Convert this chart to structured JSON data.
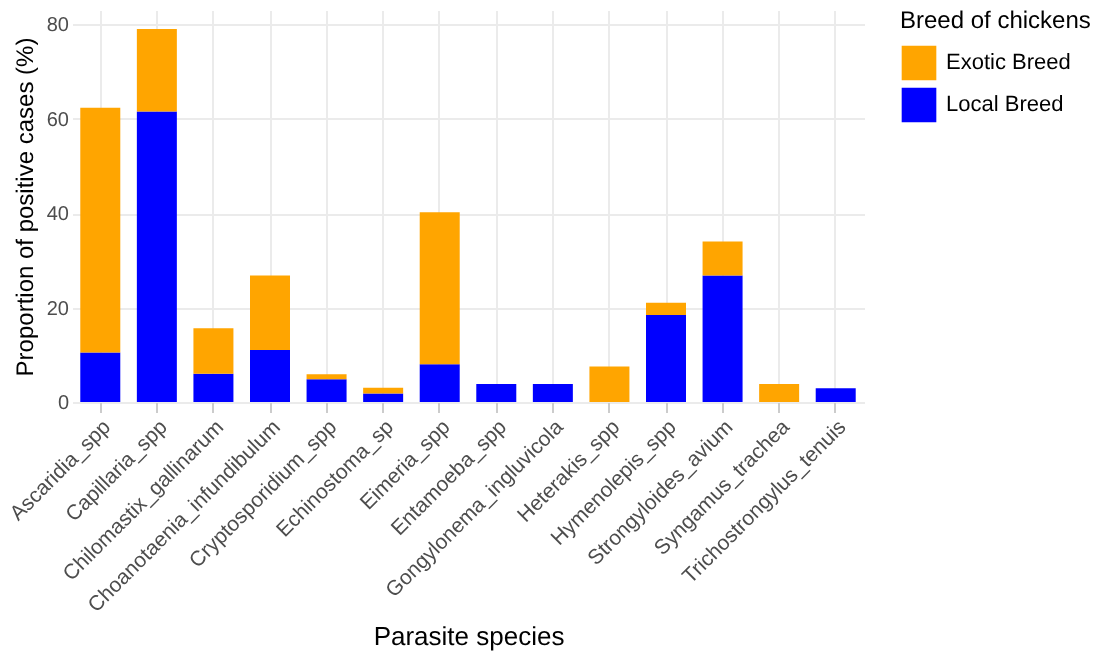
{
  "chart_data": {
    "type": "bar",
    "stacked": true,
    "xlabel": "Parasite species",
    "ylabel": "Proportion of positive cases (%)",
    "legend_title": "Breed of chickens",
    "legend": "right",
    "categories": [
      "Ascaridia_spp",
      "Capillaria_spp",
      "Chilomastix_gallinarum",
      "Choanotaenia_infundibulum",
      "Cryptosporidium_spp",
      "Echinostoma_sp",
      "Eimeria_spp",
      "Entamoeba_spp",
      "Gongylonema_ingluvicola",
      "Heterakis_spp",
      "Hymenolepis_spp",
      "Strongyloides_avium",
      "Syngamus_trachea",
      "Trichostrongylus_tenuis"
    ],
    "series": [
      {
        "name": "Local Breed",
        "color": "#0000ff",
        "values": [
          10.5,
          61.5,
          6,
          11,
          4.8,
          1.8,
          8,
          3.8,
          3.8,
          null,
          18.4,
          26.8,
          null,
          2.9
        ]
      },
      {
        "name": "Exotic Breed",
        "color": "#ffa500",
        "values": [
          51.8,
          17.5,
          9.6,
          15.8,
          1.1,
          1.2,
          32.2,
          null,
          null,
          7.5,
          2.6,
          7.2,
          3.8,
          null
        ]
      }
    ],
    "ylim": [
      0,
      83
    ],
    "yticks": [
      0,
      20,
      40,
      60,
      80
    ],
    "grid": true
  }
}
